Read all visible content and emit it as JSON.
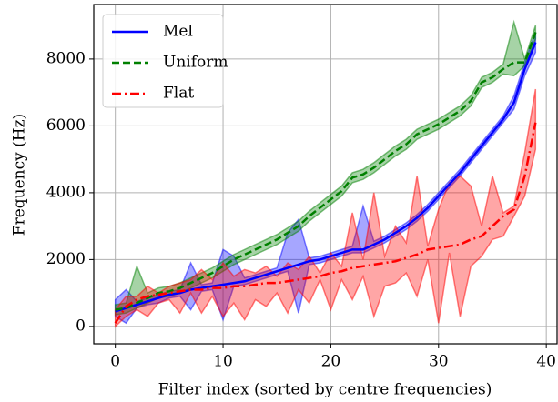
{
  "chart_data": {
    "type": "line",
    "xlabel": "Filter index (sorted by centre frequencies)",
    "ylabel": "Frequency (Hz)",
    "x": [
      0,
      1,
      2,
      3,
      4,
      5,
      6,
      7,
      8,
      9,
      10,
      11,
      12,
      13,
      14,
      15,
      16,
      17,
      18,
      19,
      20,
      21,
      22,
      23,
      24,
      25,
      26,
      27,
      28,
      29,
      30,
      31,
      32,
      33,
      34,
      35,
      36,
      37,
      38,
      39
    ],
    "series": [
      {
        "name": "Mel",
        "color": "#0000ff",
        "dash": "solid",
        "values": [
          450,
          550,
          650,
          750,
          850,
          950,
          1000,
          1100,
          1150,
          1200,
          1250,
          1300,
          1350,
          1450,
          1550,
          1650,
          1750,
          1850,
          1950,
          2000,
          2100,
          2200,
          2300,
          2300,
          2450,
          2600,
          2800,
          3000,
          3250,
          3550,
          3900,
          4250,
          4600,
          5000,
          5400,
          5800,
          6200,
          6700,
          7700,
          8500
        ],
        "lower": [
          300,
          100,
          550,
          650,
          700,
          850,
          900,
          500,
          1050,
          1100,
          200,
          1200,
          1250,
          1350,
          1450,
          1550,
          1650,
          400,
          1850,
          1900,
          2000,
          2100,
          2200,
          2200,
          2350,
          2500,
          2700,
          2900,
          3150,
          3450,
          3800,
          4150,
          4500,
          4900,
          5300,
          5700,
          6100,
          6500,
          7500,
          8200
        ],
        "upper": [
          800,
          1100,
          750,
          850,
          950,
          1050,
          1100,
          1900,
          1250,
          1300,
          2300,
          2100,
          1450,
          1550,
          1650,
          1750,
          2800,
          3200,
          2050,
          2100,
          2200,
          2300,
          2400,
          3600,
          2550,
          2700,
          2900,
          3100,
          3350,
          3650,
          4000,
          4350,
          4700,
          5100,
          5500,
          5900,
          6300,
          6900,
          7900,
          8800
        ]
      },
      {
        "name": "Uniform",
        "color": "#008000",
        "dash": "dashed",
        "values": [
          500,
          550,
          700,
          850,
          1000,
          1050,
          1150,
          1300,
          1450,
          1600,
          1800,
          2000,
          2150,
          2300,
          2450,
          2600,
          2800,
          3000,
          3300,
          3550,
          3800,
          4050,
          4450,
          4550,
          4750,
          5000,
          5250,
          5450,
          5750,
          5900,
          6050,
          6250,
          6450,
          6750,
          7300,
          7450,
          7700,
          7900,
          7900,
          8800
        ],
        "lower": [
          350,
          400,
          550,
          700,
          850,
          900,
          1000,
          1150,
          1300,
          1450,
          1650,
          1850,
          2000,
          2150,
          2300,
          2450,
          2650,
          2850,
          3150,
          3400,
          3650,
          3900,
          4300,
          4400,
          4600,
          4850,
          5100,
          5300,
          5600,
          5750,
          5900,
          6100,
          6300,
          6600,
          7150,
          7300,
          7550,
          7500,
          7800,
          8600
        ],
        "upper": [
          650,
          700,
          1800,
          1000,
          1150,
          1200,
          1300,
          1450,
          1600,
          1750,
          1950,
          2150,
          2300,
          2450,
          2600,
          2750,
          2950,
          3150,
          3450,
          3700,
          3950,
          4200,
          4600,
          4700,
          4900,
          5150,
          5400,
          5600,
          5900,
          6050,
          6200,
          6400,
          6600,
          6900,
          7450,
          7600,
          7850,
          9100,
          8000,
          9000
        ]
      },
      {
        "name": "Flat",
        "color": "#ff0000",
        "dash": "dashdot",
        "values": [
          100,
          600,
          800,
          900,
          950,
          1000,
          1050,
          1100,
          1100,
          1150,
          1150,
          1200,
          1200,
          1250,
          1300,
          1300,
          1350,
          1400,
          1450,
          1500,
          1600,
          1650,
          1750,
          1800,
          1850,
          1900,
          1950,
          2050,
          2150,
          2300,
          2350,
          2400,
          2450,
          2600,
          2700,
          3000,
          3300,
          3500,
          4500,
          6100
        ],
        "lower": [
          0,
          300,
          500,
          300,
          700,
          800,
          400,
          1000,
          400,
          900,
          300,
          700,
          200,
          800,
          600,
          1000,
          400,
          1100,
          700,
          1400,
          500,
          1400,
          800,
          1500,
          300,
          1200,
          1300,
          1600,
          900,
          2000,
          100,
          2200,
          300,
          1800,
          2100,
          2600,
          2700,
          3300,
          3900,
          5300
        ],
        "upper": [
          500,
          900,
          900,
          1200,
          1000,
          1200,
          1300,
          1400,
          1700,
          1400,
          1900,
          1500,
          1700,
          1600,
          1800,
          1500,
          1900,
          1700,
          2100,
          1600,
          2200,
          1800,
          3400,
          2000,
          4000,
          2100,
          3000,
          2500,
          4500,
          2400,
          3500,
          4300,
          4500,
          4200,
          3000,
          4500,
          3400,
          3600,
          5200,
          7100
        ]
      }
    ],
    "xlim": [
      -2,
      41
    ],
    "ylim": [
      -520,
      9630
    ],
    "xticks": [
      0,
      10,
      20,
      30,
      40
    ],
    "yticks": [
      0,
      2000,
      4000,
      6000,
      8000
    ],
    "grid": true,
    "legend": "upper left"
  }
}
